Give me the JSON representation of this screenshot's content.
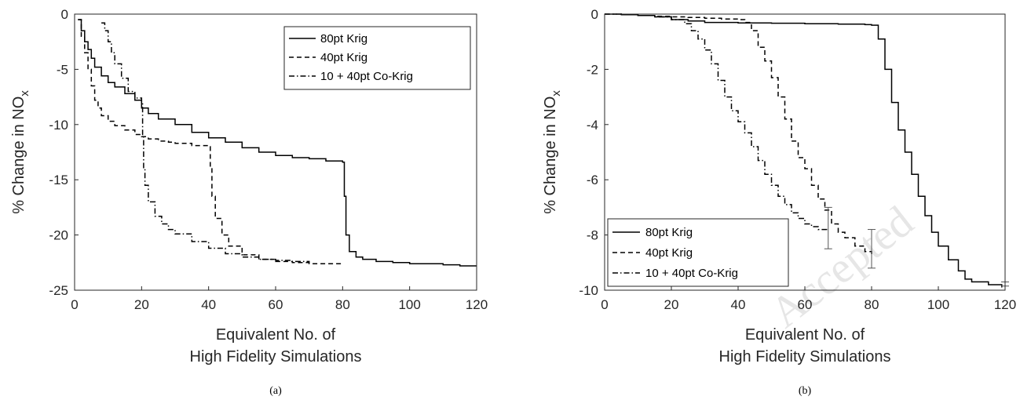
{
  "watermark": "Accepted",
  "chart_data": [
    {
      "type": "line",
      "caption": "(a)",
      "xlabel_lines": [
        "Equivalent No. of",
        "High Fidelity Simulations"
      ],
      "ylabel_main": "% Change in NO",
      "ylabel_sub": "x",
      "xlim": [
        0,
        120
      ],
      "ylim": [
        -25,
        0
      ],
      "xticks": [
        0,
        20,
        40,
        60,
        80,
        100,
        120
      ],
      "yticks": [
        0,
        -5,
        -10,
        -15,
        -20,
        -25
      ],
      "legend_position": "top-right",
      "grid": false,
      "series": [
        {
          "name": "80pt Krig",
          "style": "solid",
          "x": [
            1,
            2,
            3,
            4,
            5,
            6,
            8,
            10,
            12,
            15,
            18,
            20,
            22,
            25,
            30,
            35,
            40,
            45,
            50,
            55,
            60,
            65,
            70,
            75,
            80,
            80.5,
            81,
            82,
            84,
            86,
            90,
            95,
            100,
            105,
            110,
            115,
            120
          ],
          "y": [
            -0.5,
            -1.5,
            -2.5,
            -3.2,
            -4.0,
            -4.8,
            -5.6,
            -6.2,
            -6.6,
            -7.2,
            -7.8,
            -8.5,
            -9.0,
            -9.5,
            -10.0,
            -10.7,
            -11.2,
            -11.6,
            -12.1,
            -12.5,
            -12.8,
            -13.0,
            -13.1,
            -13.3,
            -13.4,
            -16.5,
            -20.0,
            -21.5,
            -22.0,
            -22.2,
            -22.4,
            -22.5,
            -22.6,
            -22.6,
            -22.7,
            -22.8,
            -22.8
          ]
        },
        {
          "name": "40pt Krig",
          "style": "dashed",
          "x": [
            1,
            2,
            3,
            4,
            5,
            6,
            7,
            8,
            10,
            12,
            15,
            18,
            20,
            22,
            25,
            28,
            30,
            35,
            40,
            40.5,
            41,
            42,
            44,
            46,
            50,
            55,
            60,
            65,
            70,
            75,
            80
          ],
          "y": [
            -0.5,
            -2.0,
            -3.5,
            -5.0,
            -6.5,
            -7.8,
            -8.5,
            -9.2,
            -9.7,
            -10.1,
            -10.5,
            -10.9,
            -11.1,
            -11.3,
            -11.5,
            -11.6,
            -11.7,
            -11.9,
            -12.0,
            -14.0,
            -16.5,
            -18.5,
            -20.0,
            -21.0,
            -21.8,
            -22.2,
            -22.4,
            -22.5,
            -22.6,
            -22.6,
            -22.6
          ]
        },
        {
          "name": "10 + 40pt Co-Krig",
          "style": "dashdot",
          "x": [
            8,
            9,
            10,
            11,
            12,
            14,
            16,
            18,
            20,
            20.3,
            20.6,
            21,
            22,
            24,
            26,
            28,
            30,
            35,
            40,
            45,
            50,
            55,
            60,
            65,
            70
          ],
          "y": [
            -0.8,
            -1.5,
            -2.5,
            -3.5,
            -4.5,
            -5.8,
            -7.0,
            -7.6,
            -8.0,
            -11.0,
            -14.0,
            -15.5,
            -17.0,
            -18.3,
            -19.0,
            -19.5,
            -19.9,
            -20.6,
            -21.2,
            -21.7,
            -22.0,
            -22.2,
            -22.3,
            -22.4,
            -22.5
          ]
        }
      ]
    },
    {
      "type": "line",
      "caption": "(b)",
      "xlabel_lines": [
        "Equivalent No. of",
        "High Fidelity Simulations"
      ],
      "ylabel_main": "% Change in NO",
      "ylabel_sub": "x",
      "xlim": [
        0,
        120
      ],
      "ylim": [
        -10,
        0
      ],
      "xticks": [
        0,
        20,
        40,
        60,
        80,
        100,
        120
      ],
      "yticks": [
        0,
        -2,
        -4,
        -6,
        -8,
        -10
      ],
      "legend_position": "bottom-left",
      "grid": false,
      "series": [
        {
          "name": "80pt Krig",
          "style": "solid",
          "x": [
            0,
            5,
            10,
            15,
            20,
            25,
            30,
            35,
            40,
            50,
            60,
            70,
            78,
            80,
            82,
            84,
            86,
            88,
            90,
            92,
            94,
            96,
            98,
            100,
            103,
            106,
            108,
            110,
            115,
            119
          ],
          "y": [
            0,
            -0.02,
            -0.05,
            -0.1,
            -0.2,
            -0.25,
            -0.3,
            -0.3,
            -0.32,
            -0.33,
            -0.35,
            -0.36,
            -0.38,
            -0.4,
            -0.9,
            -2.0,
            -3.2,
            -4.2,
            -5.0,
            -5.8,
            -6.6,
            -7.3,
            -7.9,
            -8.4,
            -8.9,
            -9.3,
            -9.6,
            -9.7,
            -9.8,
            -9.9
          ]
        },
        {
          "name": "40pt Krig",
          "style": "dashed",
          "x": [
            0,
            5,
            10,
            15,
            20,
            25,
            30,
            35,
            40,
            42,
            44,
            46,
            48,
            50,
            52,
            54,
            56,
            58,
            60,
            62,
            64,
            66,
            68,
            70,
            72,
            75,
            78,
            80
          ],
          "y": [
            0,
            -0.02,
            -0.05,
            -0.08,
            -0.1,
            -0.12,
            -0.15,
            -0.18,
            -0.2,
            -0.3,
            -0.6,
            -1.2,
            -1.7,
            -2.3,
            -3.0,
            -3.8,
            -4.6,
            -5.2,
            -5.6,
            -6.2,
            -6.7,
            -7.1,
            -7.6,
            -7.9,
            -8.1,
            -8.4,
            -8.6,
            -8.7
          ]
        },
        {
          "name": "10 + 40pt Co-Krig",
          "style": "dashdot",
          "x": [
            0,
            5,
            10,
            15,
            20,
            24,
            26,
            28,
            30,
            32,
            34,
            36,
            38,
            40,
            42,
            44,
            46,
            48,
            50,
            52,
            54,
            56,
            58,
            60,
            62,
            64,
            66,
            67
          ],
          "y": [
            0,
            -0.02,
            -0.05,
            -0.1,
            -0.2,
            -0.35,
            -0.6,
            -0.9,
            -1.3,
            -1.8,
            -2.4,
            -3.0,
            -3.5,
            -3.9,
            -4.3,
            -4.8,
            -5.3,
            -5.8,
            -6.2,
            -6.6,
            -6.9,
            -7.2,
            -7.4,
            -7.6,
            -7.7,
            -7.8,
            -7.8,
            -7.8
          ]
        }
      ],
      "error_bars": [
        {
          "x": 67,
          "low": -8.5,
          "high": -7.0
        },
        {
          "x": 80,
          "low": -9.2,
          "high": -7.8
        },
        {
          "x": 120,
          "low": -9.85,
          "high": -9.7
        }
      ]
    }
  ]
}
